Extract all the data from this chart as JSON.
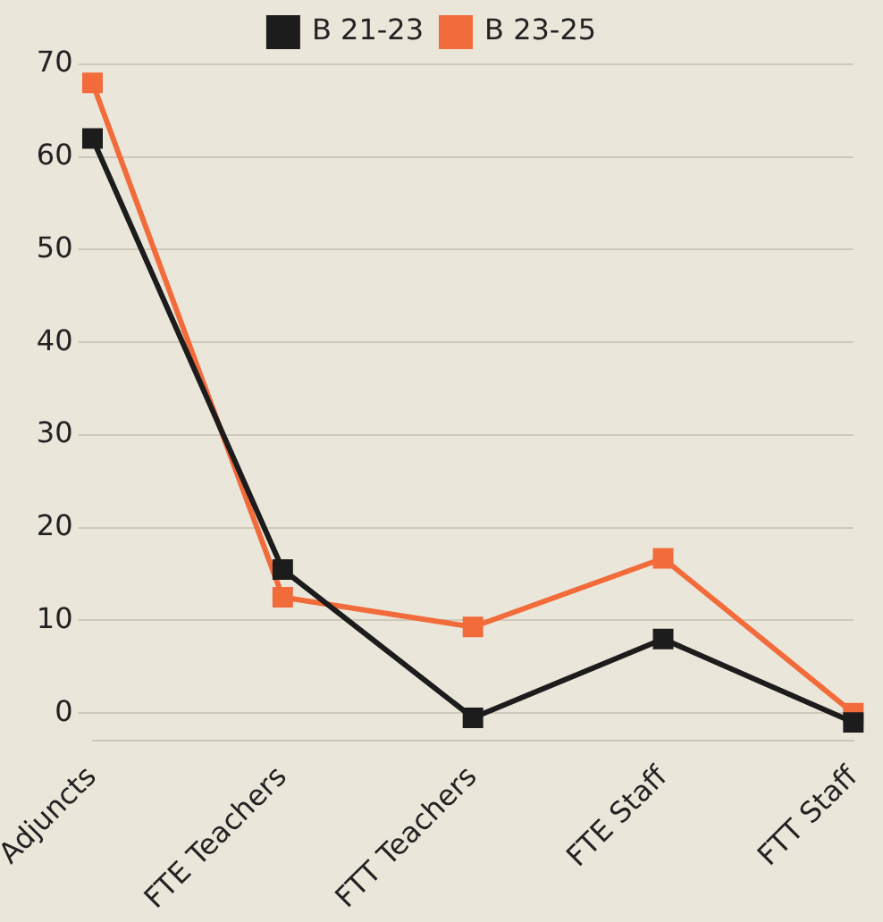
{
  "chart_data": {
    "type": "line",
    "categories": [
      "Adjuncts",
      "FTE Teachers",
      "FTT Teachers",
      "FTE Staff",
      "FTT Staff"
    ],
    "series": [
      {
        "name": "B 21-23",
        "color": "#1c1c1c",
        "values": [
          62,
          15.5,
          -0.5,
          8,
          -1
        ]
      },
      {
        "name": "B 23-25",
        "color": "#f26b3a",
        "values": [
          68,
          12.5,
          9.3,
          16.7,
          0
        ]
      }
    ],
    "ylim": [
      -3,
      70
    ],
    "yticks": [
      0,
      10,
      20,
      30,
      40,
      50,
      60,
      70
    ],
    "grid": "y",
    "legend": "top",
    "marker": "square",
    "line_style": "solid"
  }
}
